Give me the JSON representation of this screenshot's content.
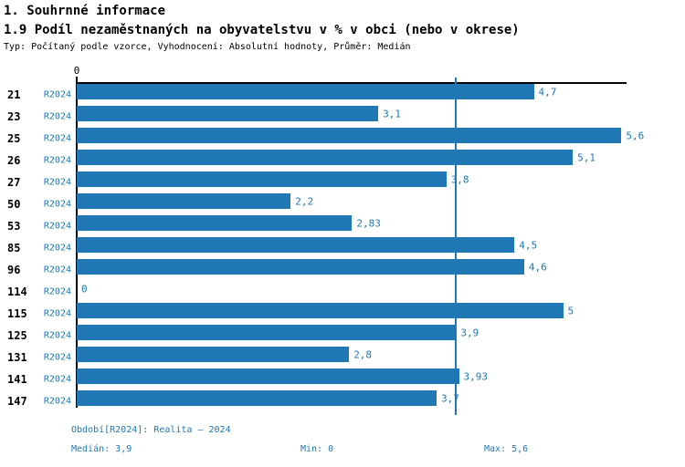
{
  "header": {
    "title": "1. Souhrnné informace",
    "subtitle": "1.9 Podíl nezaměstnaných na obyvatelstvu v % v obci (nebo v okrese)",
    "meta": "Typ: Počítaný podle vzorce, Vyhodnocení: Absolutní hodnoty, Průměr: Medián"
  },
  "chart_data": {
    "type": "bar",
    "orientation": "horizontal",
    "title": "1.9 Podíl nezaměstnaných na obyvatelstvu v % v obci (nebo v okrese)",
    "axis_zero_label": "0",
    "categories": [
      "21",
      "23",
      "25",
      "26",
      "27",
      "50",
      "53",
      "85",
      "96",
      "114",
      "115",
      "125",
      "131",
      "141",
      "147"
    ],
    "series_label": "R2024",
    "values": [
      4.7,
      3.1,
      5.6,
      5.1,
      3.8,
      2.2,
      2.83,
      4.5,
      4.6,
      0,
      5,
      3.9,
      2.8,
      3.93,
      3.7
    ],
    "value_labels": [
      "4,7",
      "3,1",
      "5,6",
      "5,1",
      "3,8",
      "2,2",
      "2,83",
      "4,5",
      "4,6",
      "0",
      "5",
      "3,9",
      "2,8",
      "3,93",
      "3,7"
    ],
    "median": 3.9,
    "xlim": [
      0,
      5.65
    ],
    "grid": false,
    "legend": "none",
    "bar_color": "#1f77b4",
    "accent_color": "#1f77b4",
    "median_line": 3.9
  },
  "footer": {
    "period": "Období[R2024]: Realita – 2024",
    "median": "Medián: 3,9",
    "min": "Min: 0",
    "max": "Max: 5,6"
  }
}
